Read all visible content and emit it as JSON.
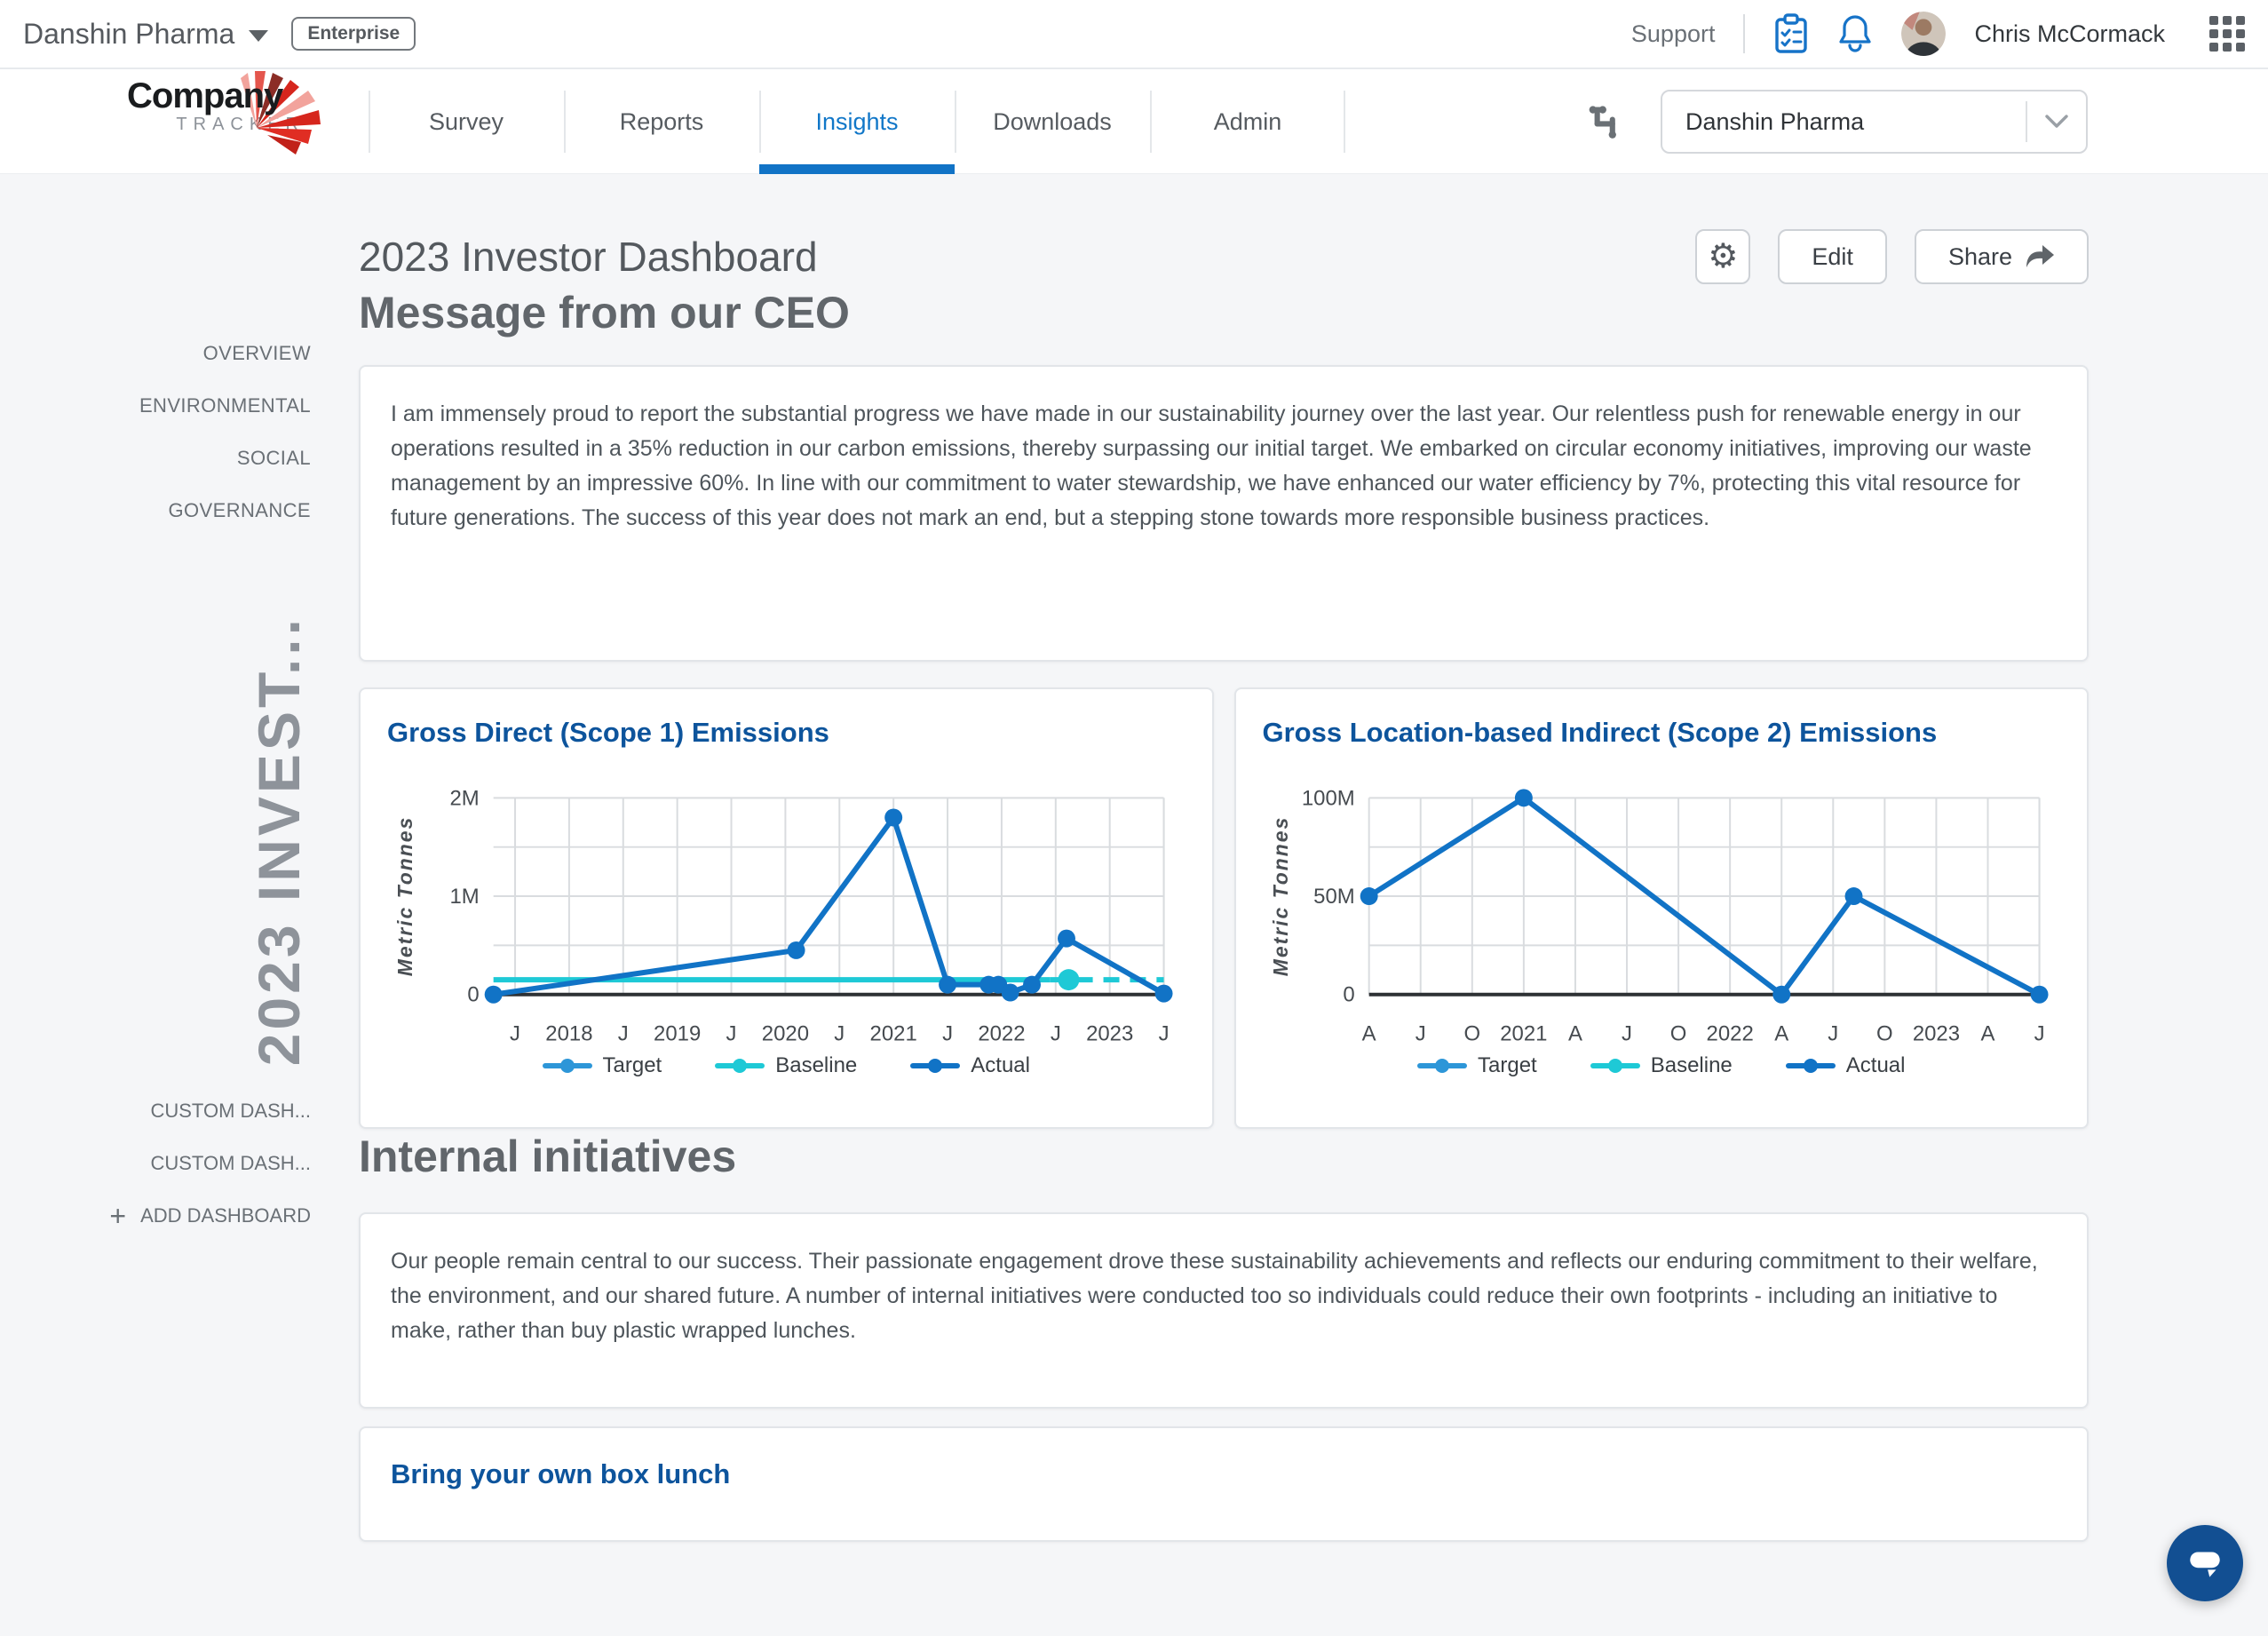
{
  "topbar": {
    "company": "Danshin Pharma",
    "badge": "Enterprise",
    "support": "Support",
    "user": "Chris McCormack"
  },
  "nav": {
    "logo_line1": "Company",
    "logo_line2": "TRACKER",
    "tabs": [
      "Survey",
      "Reports",
      "Insights",
      "Downloads",
      "Admin"
    ],
    "active_tab": "Insights",
    "org_select": "Danshin Pharma"
  },
  "sidebar": {
    "items": [
      "OVERVIEW",
      "ENVIRONMENTAL",
      "SOCIAL",
      "GOVERNANCE"
    ],
    "current_dashboard": "2023 INVEST...",
    "custom": [
      "CUSTOM DASH...",
      "CUSTOM DASH..."
    ],
    "add_plus": "+",
    "add": "ADD DASHBOARD"
  },
  "page": {
    "title": "2023 Investor Dashboard",
    "edit": "Edit",
    "share": "Share"
  },
  "ceo": {
    "heading": "Message from our CEO",
    "body": "I am immensely proud to report the substantial progress we have made in our sustainability journey over the last year. Our relentless push for renewable energy in our operations resulted in a 35% reduction in our carbon emissions, thereby surpassing our initial target. We embarked on circular economy initiatives, improving our waste management by an impressive 60%. In line with our commitment to water stewardship, we have enhanced our water efficiency by 7%, protecting this vital resource for future generations. The success of this year does not mark an end, but a stepping stone towards more responsible business practices."
  },
  "initiatives": {
    "heading": "Internal initiatives",
    "body": "Our people remain central to our success. Their passionate engagement drove these sustainability achievements and reflects our enduring commitment to their welfare, the environment, and our shared future. A number of internal initiatives were conducted too so individuals could reduce their own footprints - including an initiative to make, rather than buy plastic wrapped lunches."
  },
  "lunch": {
    "title": "Bring your own box lunch"
  },
  "colors": {
    "accent_blue": "#1173c6",
    "chart_title_blue": "#0d549c",
    "actual_blue": "#1173c6",
    "target_blue": "#2d96d8",
    "baseline_cyan": "#1ec9d6",
    "chat_blue": "#124f92"
  },
  "chart_data": [
    {
      "type": "line",
      "title": "Gross Direct (Scope 1) Emissions",
      "ylabel": "Metric Tonnes",
      "ylim": [
        0,
        2000000
      ],
      "yticks": [
        {
          "value": 0,
          "label": "0"
        },
        {
          "value": 1000000,
          "label": "1M"
        },
        {
          "value": 2000000,
          "label": "2M"
        }
      ],
      "ygrid": [
        500000,
        1000000,
        1500000,
        2000000
      ],
      "xlim": [
        2017.3,
        2023.5
      ],
      "xticks": [
        {
          "x": 2017.5,
          "label": "J"
        },
        {
          "x": 2018,
          "label": "2018"
        },
        {
          "x": 2018.5,
          "label": "J"
        },
        {
          "x": 2019,
          "label": "2019"
        },
        {
          "x": 2019.5,
          "label": "J"
        },
        {
          "x": 2020,
          "label": "2020"
        },
        {
          "x": 2020.5,
          "label": "J"
        },
        {
          "x": 2021,
          "label": "2021"
        },
        {
          "x": 2021.5,
          "label": "J"
        },
        {
          "x": 2022,
          "label": "2022"
        },
        {
          "x": 2022.5,
          "label": "J"
        },
        {
          "x": 2023,
          "label": "2023"
        },
        {
          "x": 2023.5,
          "label": "J"
        }
      ],
      "legend": [
        {
          "name": "Target",
          "color": "#2d96d8"
        },
        {
          "name": "Baseline",
          "color": "#1ec9d6"
        },
        {
          "name": "Actual",
          "color": "#1173c6"
        }
      ],
      "series": [
        {
          "name": "Actual",
          "color": "#1173c6",
          "points": [
            [
              2017.3,
              0
            ],
            [
              2020.1,
              450000
            ],
            [
              2021.0,
              1800000
            ],
            [
              2021.5,
              100000
            ],
            [
              2021.88,
              100000
            ],
            [
              2021.97,
              100000
            ],
            [
              2022.08,
              20000
            ],
            [
              2022.28,
              100000
            ],
            [
              2022.6,
              570000
            ],
            [
              2023.5,
              10000
            ]
          ]
        }
      ],
      "baseline": {
        "name": "Baseline",
        "color": "#1ec9d6",
        "value": 150000,
        "solid_from": 2017.3,
        "solid_to": 2022.45,
        "marker_x": 2022.62,
        "dash_to": 2023.5
      }
    },
    {
      "type": "line",
      "title": "Gross Location-based Indirect (Scope 2) Emissions",
      "ylabel": "Metric Tonnes",
      "ylim": [
        0,
        100000000
      ],
      "yticks": [
        {
          "value": 0,
          "label": "0"
        },
        {
          "value": 50000000,
          "label": "50M"
        },
        {
          "value": 100000000,
          "label": "100M"
        }
      ],
      "ygrid": [
        25000000,
        50000000,
        75000000,
        100000000
      ],
      "xlim": [
        2020.25,
        2023.5
      ],
      "xticks": [
        {
          "x": 2020.25,
          "label": "A"
        },
        {
          "x": 2020.5,
          "label": "J"
        },
        {
          "x": 2020.75,
          "label": "O"
        },
        {
          "x": 2021,
          "label": "2021"
        },
        {
          "x": 2021.25,
          "label": "A"
        },
        {
          "x": 2021.5,
          "label": "J"
        },
        {
          "x": 2021.75,
          "label": "O"
        },
        {
          "x": 2022,
          "label": "2022"
        },
        {
          "x": 2022.25,
          "label": "A"
        },
        {
          "x": 2022.5,
          "label": "J"
        },
        {
          "x": 2022.75,
          "label": "O"
        },
        {
          "x": 2023,
          "label": "2023"
        },
        {
          "x": 2023.25,
          "label": "A"
        },
        {
          "x": 2023.5,
          "label": "J"
        }
      ],
      "legend": [
        {
          "name": "Target",
          "color": "#2d96d8"
        },
        {
          "name": "Baseline",
          "color": "#1ec9d6"
        },
        {
          "name": "Actual",
          "color": "#1173c6"
        }
      ],
      "series": [
        {
          "name": "Actual",
          "color": "#1173c6",
          "points": [
            [
              2020.25,
              50000000
            ],
            [
              2021.0,
              100000000
            ],
            [
              2022.25,
              0
            ],
            [
              2022.6,
              50000000
            ],
            [
              2023.5,
              0
            ]
          ]
        }
      ]
    }
  ]
}
